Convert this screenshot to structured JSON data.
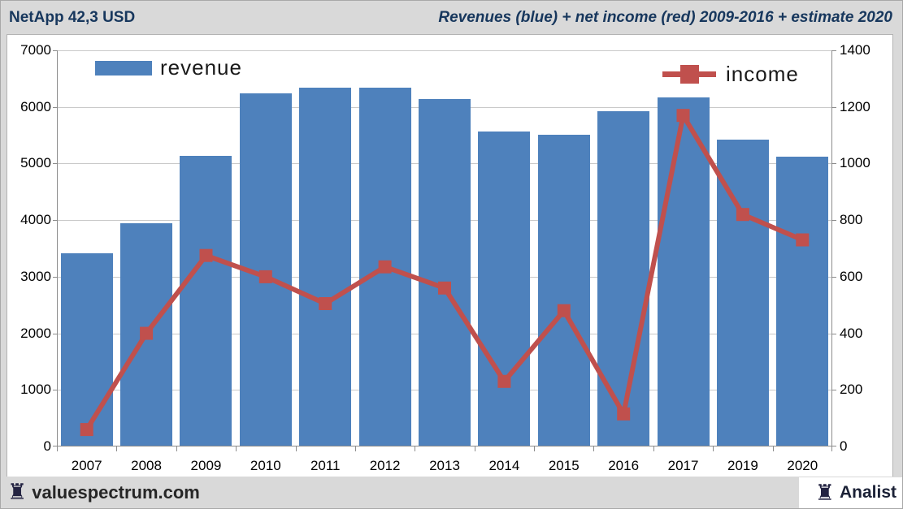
{
  "header": {
    "title": "NetApp 42,3 USD",
    "subtitle": "Revenues (blue) + net income (red) 2009-2016 + estimate 2020"
  },
  "chart_data": {
    "type": "bar",
    "title": "Revenues (blue) + net income (red) 2009-2016 + estimate 2020",
    "categories": [
      "2007",
      "2008",
      "2009",
      "2010",
      "2011",
      "2012",
      "2013",
      "2014",
      "2015",
      "2016",
      "2017",
      "2019",
      "2020"
    ],
    "series": [
      {
        "name": "revenue",
        "type": "bar",
        "axis": "left",
        "color": "#4e81bc",
        "values": [
          3400,
          3930,
          5120,
          6230,
          6330,
          6330,
          6120,
          5550,
          5500,
          5910,
          6150,
          5410,
          5110
        ]
      },
      {
        "name": "income",
        "type": "line",
        "axis": "right",
        "color": "#c0504d",
        "values": [
          60,
          400,
          675,
          600,
          505,
          635,
          560,
          230,
          480,
          115,
          1170,
          820,
          730
        ]
      }
    ],
    "left_axis": {
      "min": 0,
      "max": 7000,
      "step": 1000,
      "ticks": [
        0,
        1000,
        2000,
        3000,
        4000,
        5000,
        6000,
        7000
      ]
    },
    "right_axis": {
      "min": 0,
      "max": 1400,
      "step": 200,
      "ticks": [
        0,
        200,
        400,
        600,
        800,
        1000,
        1200,
        1400
      ]
    },
    "grid": "horizontal",
    "legend_position": "inside-top",
    "colors": {
      "bar_blue": "#4e81bc",
      "line_red": "#c0504d",
      "gridline": "#c9c9c9",
      "axis": "#8c8c8c"
    }
  },
  "footer": {
    "left_brand": "valuespectrum.com",
    "right_brand": "Analist",
    "rook_icon": "♜"
  }
}
